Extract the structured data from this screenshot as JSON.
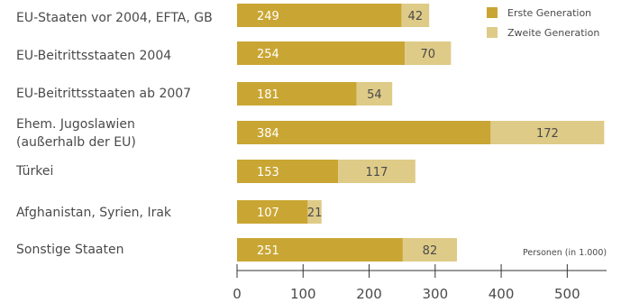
{
  "chart_data": {
    "type": "bar",
    "orientation": "horizontal",
    "stacked": true,
    "categories": [
      "EU-Staaten vor 2004, EFTA, GB",
      "EU-Beitrittsstaaten 2004",
      "EU-Beitrittsstaaten ab 2007",
      "Ehem. Jugoslawien (außerhalb der EU)",
      "Türkei",
      "Afghanistan, Syrien, Irak",
      "Sonstige Staaten"
    ],
    "series": [
      {
        "name": "Erste Generation",
        "color": "#c9a633",
        "values": [
          249,
          254,
          181,
          384,
          153,
          107,
          251
        ]
      },
      {
        "name": "Zweite Generation",
        "color": "#dfcb88",
        "values": [
          42,
          70,
          54,
          172,
          117,
          21,
          82
        ]
      }
    ],
    "xticks": [
      "0",
      "100",
      "200",
      "300",
      "400",
      "500"
    ],
    "xlim": [
      0,
      560
    ],
    "unit_note": "Personen (in 1.000)",
    "legend_position": "top-right",
    "grid": false
  }
}
